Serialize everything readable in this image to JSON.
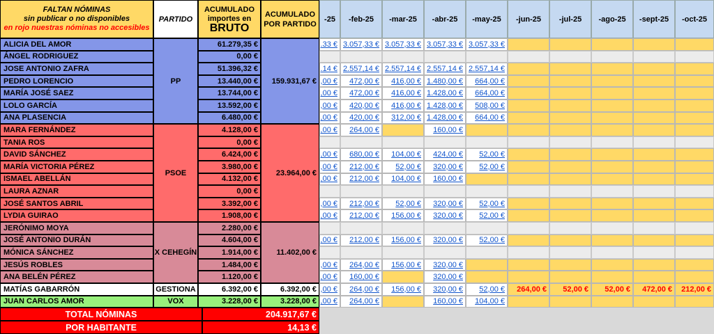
{
  "header": {
    "faltan_title": "FALTAN NÓMINAS",
    "faltan_sub1": "sin publicar o no disponibles",
    "faltan_sub2": "en rojo nuestras nóminas no accesibles",
    "partido": "PARTIDO",
    "acum_line1": "ACUMULADO",
    "acum_line2": "importes en",
    "acum_line3": "BRUTO",
    "acum_partido_line1": "ACUMULADO",
    "acum_partido_line2": "POR PARTIDO",
    "months": [
      "-25",
      "-feb-25",
      "-mar-25",
      "-abr-25",
      "-may-25",
      "-jun-25",
      "-jul-25",
      "-ago-25",
      "-sept-25",
      "-oct-25"
    ]
  },
  "parties": [
    {
      "name": "PP",
      "total": "159.931,67 €",
      "color": "#8496e8"
    },
    {
      "name": "PSOE",
      "total": "23.964,00 €",
      "color": "#ff6b6b"
    },
    {
      "name": "X CEHEGÍN",
      "total": "11.402,00 €",
      "color": "#d88a98"
    },
    {
      "name": "GESTIONA",
      "total": "6.392,00 €",
      "color": "#ffffff"
    },
    {
      "name": "VOX",
      "total": "3.228,00 €",
      "color": "#98f07c"
    }
  ],
  "rows": [
    {
      "name": "ALICIA DEL AMOR",
      "acum": "61.279,35 €",
      "months": [
        "L:.33 €",
        "L:3.057,33 €",
        "L:3.057,33 €",
        "L:3.057,33 €",
        "L:3.057,33 €",
        "Y",
        "Y",
        "Y",
        "Y",
        "Y"
      ]
    },
    {
      "name": "ÁNGEL RODRIGUEZ",
      "acum": "0,00 €",
      "months": [
        "G",
        "G",
        "G",
        "G",
        "G",
        "G",
        "G",
        "G",
        "G",
        "G"
      ]
    },
    {
      "name": "JOSE ANTONIO ZAFRA",
      "acum": "51.396,32 €",
      "months": [
        "L:.14 €",
        "L:2.557,14 €",
        "L:2.557,14 €",
        "L:2.557,14 €",
        "L:2.557,14 €",
        "Y",
        "Y",
        "Y",
        "Y",
        "Y"
      ]
    },
    {
      "name": "PEDRO LORENCIO",
      "acum": "13.440,00 €",
      "months": [
        "L:,00 €",
        "L:472,00 €",
        "L:416,00 €",
        "L:1.480,00 €",
        "L:664,00 €",
        "Y",
        "Y",
        "Y",
        "Y",
        "Y"
      ]
    },
    {
      "name": "MARÍA JOSÉ SAEZ",
      "acum": "13.744,00 €",
      "months": [
        "L:,00 €",
        "L:472,00 €",
        "L:416,00 €",
        "L:1.428,00 €",
        "L:664,00 €",
        "Y",
        "Y",
        "Y",
        "Y",
        "Y"
      ]
    },
    {
      "name": "LOLO GARCÍA",
      "acum": "13.592,00 €",
      "months": [
        "L:,00 €",
        "L:420,00 €",
        "L:416,00 €",
        "L:1.428,00 €",
        "L:508,00 €",
        "Y",
        "Y",
        "Y",
        "Y",
        "Y"
      ]
    },
    {
      "name": "ANA PLASENCIA",
      "acum": "6.480,00 €",
      "months": [
        "L:,00 €",
        "L:420,00 €",
        "L:312,00 €",
        "L:1.428,00 €",
        "L:664,00 €",
        "Y",
        "Y",
        "Y",
        "Y",
        "Y"
      ]
    },
    {
      "name": "MARA FERNÁNDEZ",
      "acum": "4.128,00 €",
      "months": [
        "L:,00 €",
        "L:264,00 €",
        "Y",
        "L:160,00 €",
        "Y",
        "Y",
        "Y",
        "Y",
        "Y",
        "Y"
      ]
    },
    {
      "name": "TANIA ROS",
      "acum": "0,00 €",
      "months": [
        "G",
        "G",
        "G",
        "G",
        "G",
        "G",
        "G",
        "G",
        "G",
        "G"
      ]
    },
    {
      "name": "DAVID SÁNCHEZ",
      "acum": "6.424,00 €",
      "months": [
        "L:,00 €",
        "L:680,00 €",
        "L:104,00 €",
        "L:424,00 €",
        "L:52,00 €",
        "Y",
        "Y",
        "Y",
        "Y",
        "Y"
      ]
    },
    {
      "name": "MARÍA VICTORIA PÉREZ",
      "acum": "3.980,00 €",
      "months": [
        "L:,00 €",
        "L:212,00 €",
        "L:52,00 €",
        "L:320,00 €",
        "L:52,00 €",
        "Y",
        "Y",
        "Y",
        "Y",
        "Y"
      ]
    },
    {
      "name": "ISMAEL ABELLÁN",
      "acum": "4.132,00 €",
      "months": [
        "L:,00 €",
        "L:212,00 €",
        "L:104,00 €",
        "L:160,00 €",
        "Y",
        "Y",
        "Y",
        "Y",
        "Y",
        "Y"
      ]
    },
    {
      "name": "LAURA AZNAR",
      "acum": "0,00 €",
      "months": [
        "G",
        "G",
        "G",
        "G",
        "G",
        "G",
        "G",
        "G",
        "G",
        "G"
      ]
    },
    {
      "name": "JOSÉ SANTOS ABRIL",
      "acum": "3.392,00 €",
      "months": [
        "L:,00 €",
        "L:212,00 €",
        "L:52,00 €",
        "L:320,00 €",
        "L:52,00 €",
        "Y",
        "Y",
        "Y",
        "Y",
        "Y"
      ]
    },
    {
      "name": "LYDIA GUIRAO",
      "acum": "1.908,00 €",
      "months": [
        "L:,00 €",
        "L:212,00 €",
        "L:156,00 €",
        "L:320,00 €",
        "L:52,00 €",
        "Y",
        "Y",
        "Y",
        "Y",
        "Y"
      ]
    },
    {
      "name": "JERÓNIMO MOYA",
      "acum": "2.280,00 €",
      "months": [
        "G",
        "G",
        "G",
        "G",
        "G",
        "G",
        "G",
        "G",
        "G",
        "G"
      ]
    },
    {
      "name": "JOSÉ ANTONIO DURÁN",
      "acum": "4.604,00 €",
      "months": [
        "L:,00 €",
        "L:212,00 €",
        "L:156,00 €",
        "L:320,00 €",
        "L:52,00 €",
        "Y",
        "Y",
        "Y",
        "Y",
        "Y"
      ]
    },
    {
      "name": "MÓNICA SÁNCHEZ",
      "acum": "1.914,00 €",
      "months": [
        "G",
        "G",
        "G",
        "G",
        "G",
        "G",
        "G",
        "G",
        "G",
        "G"
      ]
    },
    {
      "name": "JESÚS ROBLES",
      "acum": "1.484,00 €",
      "months": [
        "L:,00 €",
        "L:264,00 €",
        "L:156,00 €",
        "L:320,00 €",
        "Y",
        "Y",
        "Y",
        "Y",
        "Y",
        "Y"
      ]
    },
    {
      "name": "ANA BELÉN PÉREZ",
      "acum": "1.120,00 €",
      "months": [
        "L:,00 €",
        "L:160,00 €",
        "Y",
        "L:320,00 €",
        "Y",
        "Y",
        "Y",
        "Y",
        "Y",
        "Y"
      ]
    },
    {
      "name": "MATÍAS GABARRÓN",
      "acum": "6.392,00 €",
      "months": [
        "L:,00 €",
        "L:264,00 €",
        "L:156,00 €",
        "L:320,00 €",
        "L:52,00 €",
        "R:264,00 €",
        "R:52,00 €",
        "R:52,00 €",
        "R:472,00 €",
        "R:212,00 €"
      ]
    },
    {
      "name": "JUAN CARLOS AMOR",
      "acum": "3.228,00 €",
      "months": [
        "L:,00 €",
        "L:264,00 €",
        "Y",
        "L:160,00 €",
        "L:104,00 €",
        "Y",
        "Y",
        "Y",
        "Y",
        "Y"
      ]
    }
  ],
  "totals": {
    "label1": "TOTAL NÓMINAS",
    "value1": "204.917,67 €",
    "label2": "POR HABITANTE",
    "value2": "14,13 €"
  }
}
